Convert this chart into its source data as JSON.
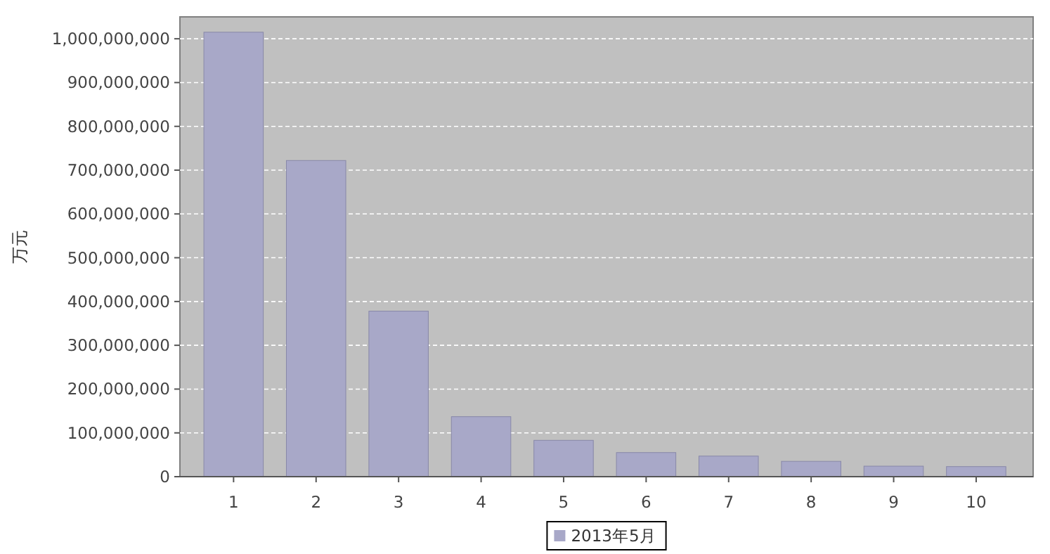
{
  "chart_data": {
    "type": "bar",
    "ylabel": "万元",
    "categories": [
      "1",
      "2",
      "3",
      "4",
      "5",
      "6",
      "7",
      "8",
      "9",
      "10"
    ],
    "series": [
      {
        "name": "2013年5月",
        "color": "#a8a8c8",
        "values": [
          1015000000,
          722000000,
          378000000,
          137000000,
          83000000,
          55000000,
          47000000,
          35000000,
          24000000,
          23000000
        ]
      }
    ],
    "ylim": [
      0,
      1050000000
    ],
    "yticks": [
      {
        "value": 0,
        "label": "0"
      },
      {
        "value": 100000000,
        "label": "100,000,000"
      },
      {
        "value": 200000000,
        "label": "200,000,000"
      },
      {
        "value": 300000000,
        "label": "300,000,000"
      },
      {
        "value": 400000000,
        "label": "400,000,000"
      },
      {
        "value": 500000000,
        "label": "500,000,000"
      },
      {
        "value": 600000000,
        "label": "600,000,000"
      },
      {
        "value": 700000000,
        "label": "700,000,000"
      },
      {
        "value": 800000000,
        "label": "800,000,000"
      },
      {
        "value": 900000000,
        "label": "900,000,000"
      },
      {
        "value": 1000000000,
        "label": "1,000,000,000"
      }
    ],
    "grid": "y",
    "legend": "bottom"
  }
}
